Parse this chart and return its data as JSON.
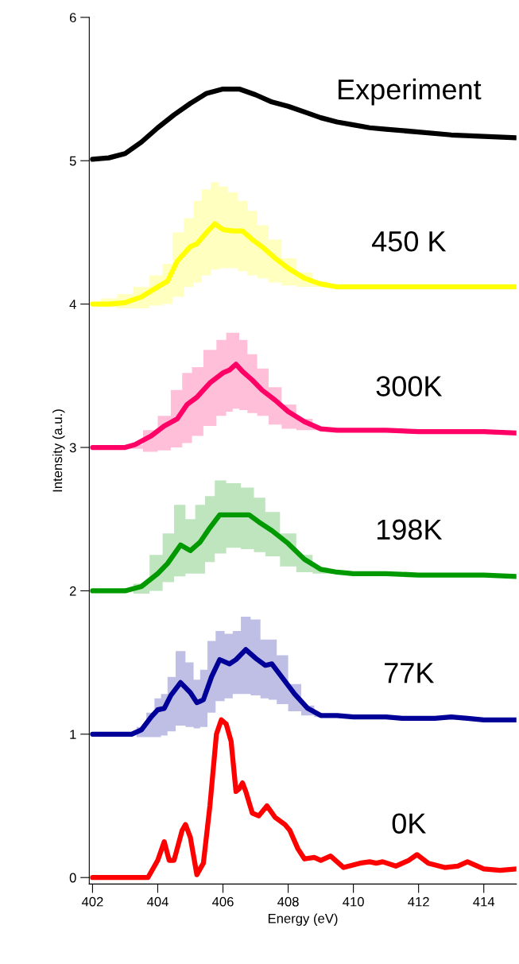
{
  "chart_data": {
    "type": "line",
    "xlabel": "Energy (eV)",
    "ylabel": "Intensity (a.u.)",
    "xlim": [
      401.9,
      415
    ],
    "ylim": [
      -0.045,
      6
    ],
    "xticks": [
      402,
      404,
      406,
      408,
      410,
      412,
      414
    ],
    "yticks": [
      0,
      1,
      2,
      3,
      4,
      5,
      6
    ],
    "grid": false,
    "legend": false,
    "marker": "none",
    "line_style": "solid",
    "series": [
      {
        "name": "Experiment",
        "color": "#000000",
        "x": [
          402,
          402.5,
          403,
          403.5,
          404,
          404.5,
          405,
          405.5,
          406,
          406.5,
          407,
          407.5,
          408,
          408.5,
          409,
          409.5,
          410,
          410.5,
          411,
          412,
          413,
          414,
          415
        ],
        "values": [
          5.01,
          5.02,
          5.05,
          5.13,
          5.23,
          5.32,
          5.4,
          5.47,
          5.5,
          5.5,
          5.46,
          5.41,
          5.38,
          5.34,
          5.3,
          5.27,
          5.25,
          5.23,
          5.22,
          5.2,
          5.18,
          5.17,
          5.16
        ]
      },
      {
        "name": "450 K",
        "color": "#ffff00",
        "x": [
          402,
          402.5,
          403,
          403.5,
          404,
          404.3,
          404.6,
          405,
          405.2,
          405.5,
          405.75,
          406,
          406.3,
          406.6,
          406.9,
          407.2,
          407.6,
          408,
          408.5,
          409,
          409.5,
          410,
          411,
          412,
          413,
          414,
          415
        ],
        "values": [
          4.0,
          4.0,
          4.01,
          4.05,
          4.12,
          4.16,
          4.3,
          4.4,
          4.42,
          4.5,
          4.56,
          4.52,
          4.51,
          4.51,
          4.45,
          4.4,
          4.32,
          4.25,
          4.18,
          4.14,
          4.12,
          4.12,
          4.12,
          4.12,
          4.12,
          4.12,
          4.12
        ],
        "upper": [
          4.0,
          4.04,
          4.07,
          4.12,
          4.2,
          4.28,
          4.5,
          4.6,
          4.72,
          4.8,
          4.85,
          4.82,
          4.78,
          4.72,
          4.65,
          4.55,
          4.45,
          4.32,
          4.22,
          4.16,
          4.13,
          4.12,
          4.12,
          4.12,
          4.12,
          4.12,
          4.12
        ],
        "lower": [
          4.0,
          3.98,
          3.97,
          3.97,
          3.99,
          4.0,
          4.05,
          4.12,
          4.15,
          4.2,
          4.24,
          4.25,
          4.25,
          4.23,
          4.2,
          4.18,
          4.15,
          4.13,
          4.12,
          4.12,
          4.12,
          4.12,
          4.12,
          4.12,
          4.12,
          4.12,
          4.12
        ]
      },
      {
        "name": "300K",
        "color": "#ff0066",
        "x": [
          402,
          403,
          403.3,
          403.8,
          404.2,
          404.6,
          404.9,
          405.2,
          405.6,
          406,
          406.2,
          406.4,
          406.6,
          406.9,
          407.2,
          407.6,
          408,
          408.5,
          409,
          409.5,
          410,
          411,
          412,
          413,
          414,
          415
        ],
        "values": [
          3.0,
          3.0,
          3.02,
          3.08,
          3.15,
          3.2,
          3.3,
          3.35,
          3.45,
          3.52,
          3.54,
          3.58,
          3.53,
          3.47,
          3.4,
          3.33,
          3.25,
          3.18,
          3.13,
          3.12,
          3.12,
          3.12,
          3.11,
          3.11,
          3.11,
          3.1
        ],
        "upper": [
          3.0,
          3.0,
          3.02,
          3.12,
          3.22,
          3.4,
          3.52,
          3.56,
          3.68,
          3.75,
          3.8,
          3.8,
          3.75,
          3.65,
          3.55,
          3.42,
          3.3,
          3.2,
          3.14,
          3.12,
          3.12,
          3.12,
          3.11,
          3.11,
          3.11,
          3.1
        ],
        "lower": [
          3.0,
          3.0,
          2.99,
          2.97,
          2.98,
          3.0,
          3.03,
          3.08,
          3.15,
          3.22,
          3.25,
          3.27,
          3.26,
          3.24,
          3.22,
          3.16,
          3.13,
          3.12,
          3.12,
          3.12,
          3.12,
          3.12,
          3.11,
          3.11,
          3.11,
          3.1
        ]
      },
      {
        "name": "198K",
        "color": "#009900",
        "x": [
          402,
          403,
          403.5,
          404,
          404.3,
          404.7,
          405,
          405.3,
          405.6,
          405.9,
          406.3,
          406.8,
          407.1,
          407.5,
          408,
          408.5,
          409,
          409.5,
          410,
          411,
          412,
          413,
          414,
          415
        ],
        "values": [
          2.0,
          2.0,
          2.03,
          2.12,
          2.19,
          2.32,
          2.28,
          2.34,
          2.44,
          2.53,
          2.53,
          2.53,
          2.48,
          2.42,
          2.33,
          2.22,
          2.15,
          2.13,
          2.12,
          2.12,
          2.11,
          2.11,
          2.11,
          2.1
        ],
        "upper": [
          2.0,
          2.0,
          2.05,
          2.25,
          2.4,
          2.6,
          2.5,
          2.6,
          2.66,
          2.77,
          2.75,
          2.72,
          2.65,
          2.55,
          2.4,
          2.25,
          2.16,
          2.13,
          2.12,
          2.12,
          2.11,
          2.11,
          2.11,
          2.1
        ],
        "lower": [
          2.0,
          2.0,
          1.98,
          2.0,
          2.06,
          2.1,
          2.12,
          2.12,
          2.2,
          2.26,
          2.3,
          2.29,
          2.27,
          2.24,
          2.17,
          2.13,
          2.12,
          2.12,
          2.12,
          2.12,
          2.11,
          2.11,
          2.11,
          2.1
        ]
      },
      {
        "name": "77K",
        "color": "#000099",
        "x": [
          402,
          403.2,
          403.5,
          403.8,
          404,
          404.2,
          404.4,
          404.7,
          405,
          405.2,
          405.4,
          405.65,
          405.9,
          406.2,
          406.4,
          406.7,
          407,
          407.3,
          407.5,
          407.8,
          408.2,
          408.6,
          409,
          409.5,
          410,
          411,
          411.5,
          412,
          412.5,
          413,
          413.5,
          414,
          415
        ],
        "values": [
          1.0,
          1.0,
          1.03,
          1.12,
          1.17,
          1.18,
          1.27,
          1.36,
          1.29,
          1.22,
          1.24,
          1.4,
          1.52,
          1.49,
          1.52,
          1.59,
          1.53,
          1.48,
          1.49,
          1.4,
          1.28,
          1.18,
          1.13,
          1.13,
          1.12,
          1.12,
          1.11,
          1.11,
          1.11,
          1.12,
          1.11,
          1.1,
          1.1
        ],
        "upper": [
          1.0,
          1.0,
          1.05,
          1.15,
          1.25,
          1.28,
          1.4,
          1.58,
          1.5,
          1.38,
          1.45,
          1.65,
          1.72,
          1.7,
          1.72,
          1.82,
          1.8,
          1.66,
          1.66,
          1.55,
          1.35,
          1.2,
          1.14,
          1.13,
          1.12,
          1.12,
          1.11,
          1.11,
          1.11,
          1.12,
          1.11,
          1.1,
          1.1
        ],
        "lower": [
          1.0,
          1.0,
          0.98,
          0.98,
          0.98,
          0.99,
          1.02,
          1.06,
          1.05,
          1.04,
          1.05,
          1.15,
          1.23,
          1.25,
          1.28,
          1.28,
          1.27,
          1.25,
          1.24,
          1.21,
          1.16,
          1.13,
          1.12,
          1.12,
          1.12,
          1.12,
          1.11,
          1.11,
          1.11,
          1.12,
          1.11,
          1.1,
          1.1
        ]
      },
      {
        "name": "0K",
        "color": "#ff0000",
        "x": [
          402,
          403.7,
          404,
          404.2,
          404.35,
          404.5,
          404.75,
          404.85,
          405,
          405.2,
          405.4,
          405.6,
          405.8,
          405.95,
          406.1,
          406.25,
          406.4,
          406.5,
          406.6,
          406.7,
          406.9,
          407.1,
          407.35,
          407.6,
          407.9,
          408.05,
          408.3,
          408.5,
          408.8,
          409,
          409.3,
          409.7,
          410.2,
          410.5,
          410.7,
          410.9,
          411.3,
          411.7,
          411.95,
          412.3,
          412.8,
          413.2,
          413.5,
          414,
          414.5,
          415
        ],
        "values": [
          0,
          0,
          0.12,
          0.25,
          0.12,
          0.12,
          0.33,
          0.37,
          0.28,
          0.02,
          0.1,
          0.5,
          1.0,
          1.1,
          1.07,
          0.95,
          0.6,
          0.62,
          0.66,
          0.6,
          0.45,
          0.43,
          0.5,
          0.42,
          0.37,
          0.33,
          0.2,
          0.13,
          0.14,
          0.12,
          0.15,
          0.07,
          0.1,
          0.11,
          0.1,
          0.11,
          0.08,
          0.12,
          0.16,
          0.1,
          0.07,
          0.08,
          0.11,
          0.06,
          0.05,
          0.06
        ]
      }
    ]
  }
}
